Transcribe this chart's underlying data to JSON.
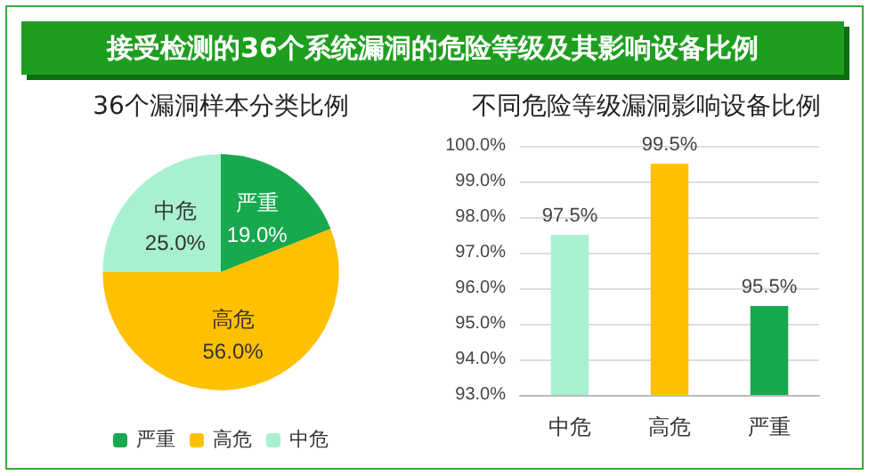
{
  "chart_data": [
    {
      "type": "other",
      "title": "接受检测的36个系统漏洞的危险等级及其影响设备比例"
    },
    {
      "type": "pie",
      "title": "36个漏洞样本分类比例",
      "categories": [
        "严重",
        "高危",
        "中危"
      ],
      "values": [
        19,
        56,
        25
      ],
      "colors": [
        "#18a84e",
        "#ffc000",
        "#a8f0d0"
      ],
      "value_labels": [
        "19.0%",
        "56.0%",
        "25.0%"
      ],
      "legend": "bottom"
    },
    {
      "type": "bar",
      "title": "不同危险等级漏洞影响设备比例",
      "categories": [
        "中危",
        "高危",
        "严重"
      ],
      "values": [
        97.5,
        99.5,
        95.5
      ],
      "colors": [
        "#a8f0d0",
        "#ffc000",
        "#18a84e"
      ],
      "value_labels": [
        "97.5%",
        "99.5%",
        "95.5%"
      ],
      "ylim": [
        93,
        100
      ],
      "yticks": [
        {
          "value": 93,
          "label": "93.0%"
        },
        {
          "value": 94,
          "label": "94.0%"
        },
        {
          "value": 95,
          "label": "95.0%"
        },
        {
          "value": 96,
          "label": "96.0%"
        },
        {
          "value": 97,
          "label": "97.0%"
        },
        {
          "value": 98,
          "label": "98.0%"
        },
        {
          "value": 99,
          "label": "99.0%"
        },
        {
          "value": 100,
          "label": "100.0%"
        }
      ],
      "grid": "y",
      "legend": false
    }
  ]
}
